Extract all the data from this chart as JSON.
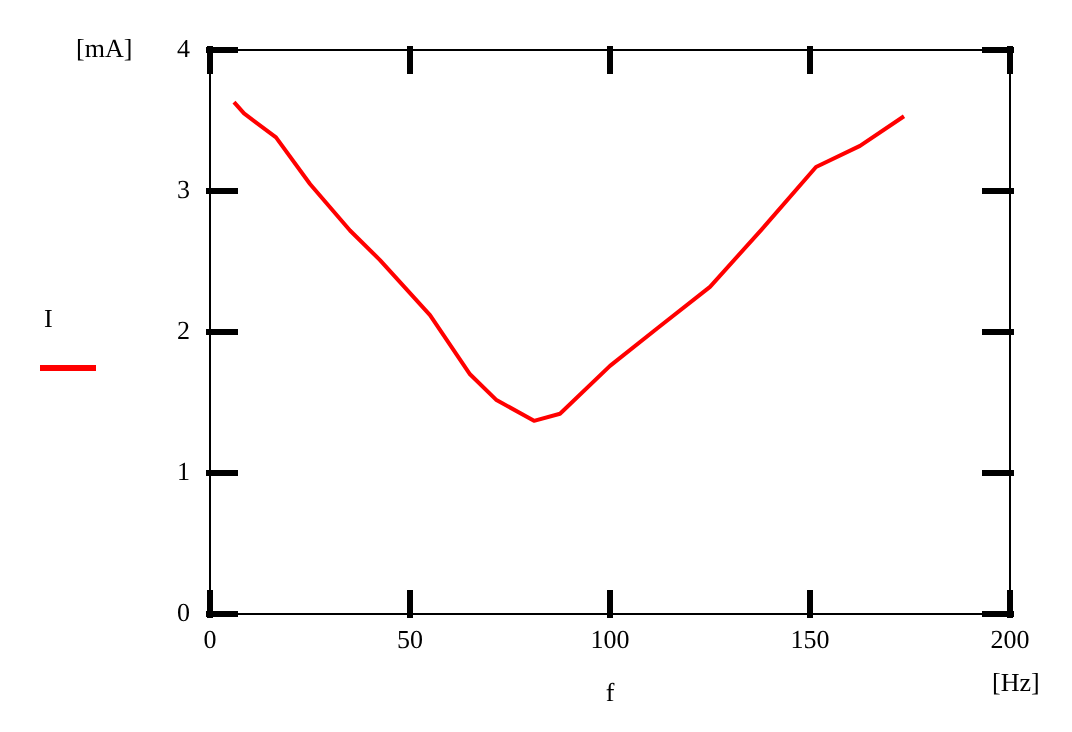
{
  "chart_data": {
    "type": "line",
    "xlabel": "f",
    "annotations": [
      "[mA]",
      "[Hz]"
    ],
    "x": [
      6,
      8.5,
      16.5,
      25,
      35,
      42.5,
      55,
      65,
      71.5,
      81,
      87.5,
      100,
      112,
      125,
      138,
      151.5,
      162.5,
      173.5
    ],
    "series": [
      {
        "name": "I",
        "color": "#ff0000",
        "values": [
          3.63,
          3.55,
          3.38,
          3.05,
          2.72,
          2.51,
          2.12,
          1.7,
          1.52,
          1.37,
          1.42,
          1.76,
          2.03,
          2.32,
          2.73,
          3.17,
          3.32,
          3.53
        ]
      }
    ],
    "xlim": [
      0,
      200
    ],
    "xticks": [
      0,
      50,
      100,
      150,
      200
    ],
    "ylim": [
      0,
      4
    ],
    "yticks": [
      0,
      1,
      2,
      3,
      4
    ],
    "grid": false,
    "legend": "left",
    "marker": "none",
    "line_style": "solid"
  }
}
